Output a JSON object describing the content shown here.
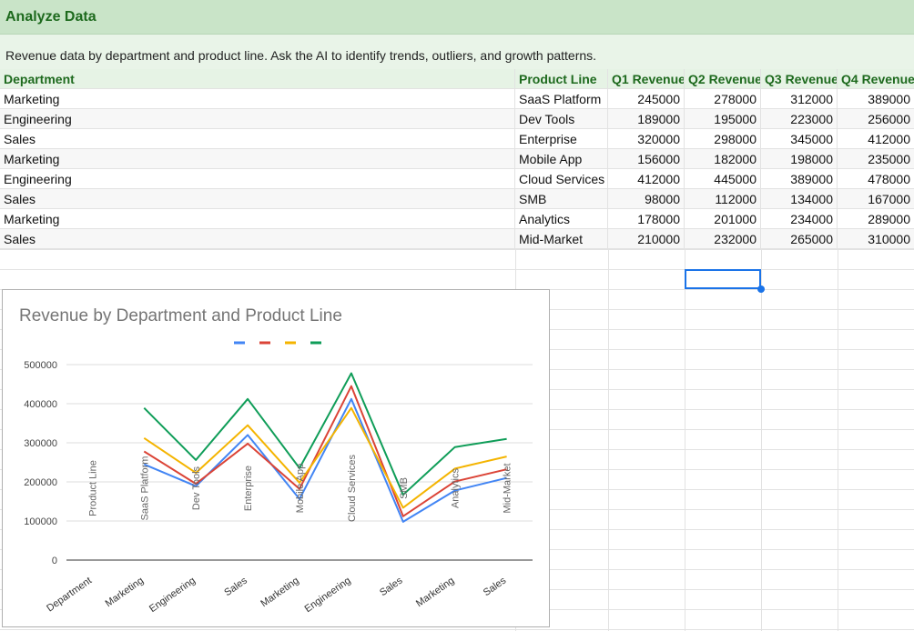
{
  "sheet": {
    "title": "Analyze Data",
    "description": "Revenue data by department and product line. Ask the AI to identify trends, outliers, and growth patterns."
  },
  "table": {
    "headers": [
      "Department",
      "Product Line",
      "Q1 Revenue",
      "Q2 Revenue",
      "Q3 Revenue",
      "Q4 Revenue"
    ],
    "rows": [
      [
        "Marketing",
        "SaaS Platform",
        "245000",
        "278000",
        "312000",
        "389000"
      ],
      [
        "Engineering",
        "Dev Tools",
        "189000",
        "195000",
        "223000",
        "256000"
      ],
      [
        "Sales",
        "Enterprise",
        "320000",
        "298000",
        "345000",
        "412000"
      ],
      [
        "Marketing",
        "Mobile App",
        "156000",
        "182000",
        "198000",
        "235000"
      ],
      [
        "Engineering",
        "Cloud Services",
        "412000",
        "445000",
        "389000",
        "478000"
      ],
      [
        "Sales",
        "SMB",
        "98000",
        "112000",
        "134000",
        "167000"
      ],
      [
        "Marketing",
        "Analytics",
        "178000",
        "201000",
        "234000",
        "289000"
      ],
      [
        "Sales",
        "Mid-Market",
        "210000",
        "232000",
        "265000",
        "310000"
      ]
    ]
  },
  "chart_data": {
    "type": "line",
    "title": "Revenue by Department and Product Line",
    "categories": [
      "Department",
      "Marketing",
      "Engineering",
      "Sales",
      "Marketing",
      "Engineering",
      "Sales",
      "Marketing",
      "Sales"
    ],
    "series": [
      {
        "color": "#4285f4",
        "values": [
          null,
          245000,
          189000,
          320000,
          156000,
          412000,
          98000,
          178000,
          210000
        ]
      },
      {
        "color": "#db4437",
        "values": [
          null,
          278000,
          195000,
          298000,
          182000,
          445000,
          112000,
          201000,
          232000
        ]
      },
      {
        "color": "#f4b400",
        "values": [
          null,
          312000,
          223000,
          345000,
          198000,
          389000,
          134000,
          234000,
          265000
        ]
      },
      {
        "color": "#0f9d58",
        "values": [
          null,
          389000,
          256000,
          412000,
          235000,
          478000,
          167000,
          289000,
          310000
        ]
      }
    ],
    "point_labels": [
      "Product Line",
      "SaaS Platform",
      "Dev Tools",
      "Enterprise",
      "Mobile App",
      "Cloud Services",
      "SMB",
      "Analytics",
      "Mid-Market"
    ],
    "yticks": [
      "500000",
      "400000",
      "300000",
      "200000",
      "100000",
      "0"
    ],
    "ylim": [
      0,
      500000
    ],
    "legend": "top",
    "grid": true
  }
}
